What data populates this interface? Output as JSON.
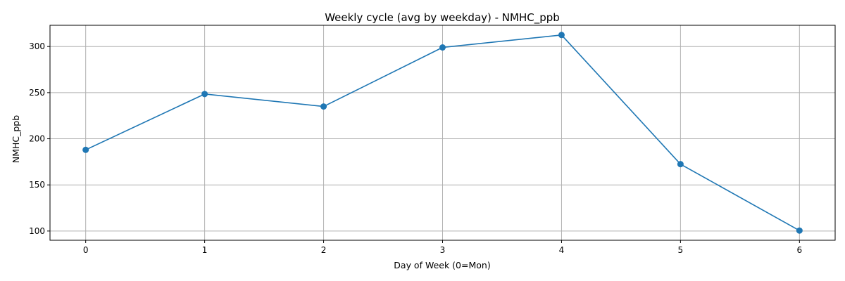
{
  "chart_data": {
    "type": "line",
    "title": "Weekly cycle (avg by weekday) - NMHC_ppb",
    "xlabel": "Day of Week (0=Mon)",
    "ylabel": "NMHC_ppb",
    "x": [
      0,
      1,
      2,
      3,
      4,
      5,
      6
    ],
    "x_ticks": [
      "0",
      "1",
      "2",
      "3",
      "4",
      "5",
      "6"
    ],
    "y_ticks": [
      "100",
      "150",
      "200",
      "250",
      "300"
    ],
    "xlim": [
      -0.3,
      6.3
    ],
    "ylim": [
      90,
      323
    ],
    "grid": true,
    "series": [
      {
        "values": [
          188,
          248.5,
          235,
          299,
          312.5,
          172.5,
          100.5
        ],
        "color": "#1f77b4",
        "marker": "circle"
      }
    ]
  }
}
